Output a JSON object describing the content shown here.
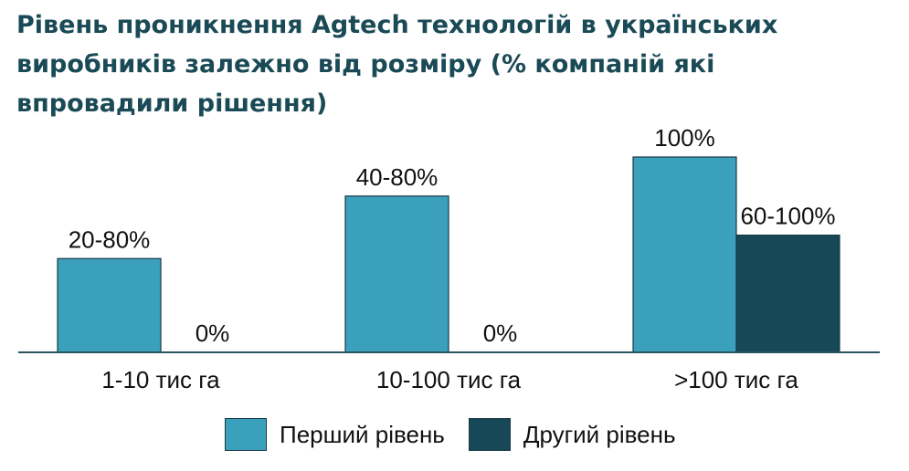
{
  "chart_data": {
    "type": "bar",
    "title": "Рівень проникнення Agtech технологій в українських виробників залежно від розміру (% компаній які впровадили рішення)",
    "categories": [
      "1-10 тис га",
      "10-100 тис га",
      ">100 тис га"
    ],
    "series": [
      {
        "name": "Перший рівень",
        "color": "#3ba0bc",
        "values": [
          48,
          80,
          100
        ],
        "labels": [
          "20-80%",
          "40-80%",
          "100%"
        ]
      },
      {
        "name": "Другий рівень",
        "color": "#174857",
        "values": [
          0,
          0,
          60
        ],
        "labels": [
          "0%",
          "0%",
          "60-100%"
        ]
      }
    ],
    "ylim": [
      0,
      100
    ],
    "grid": false,
    "legend_position": "bottom"
  }
}
